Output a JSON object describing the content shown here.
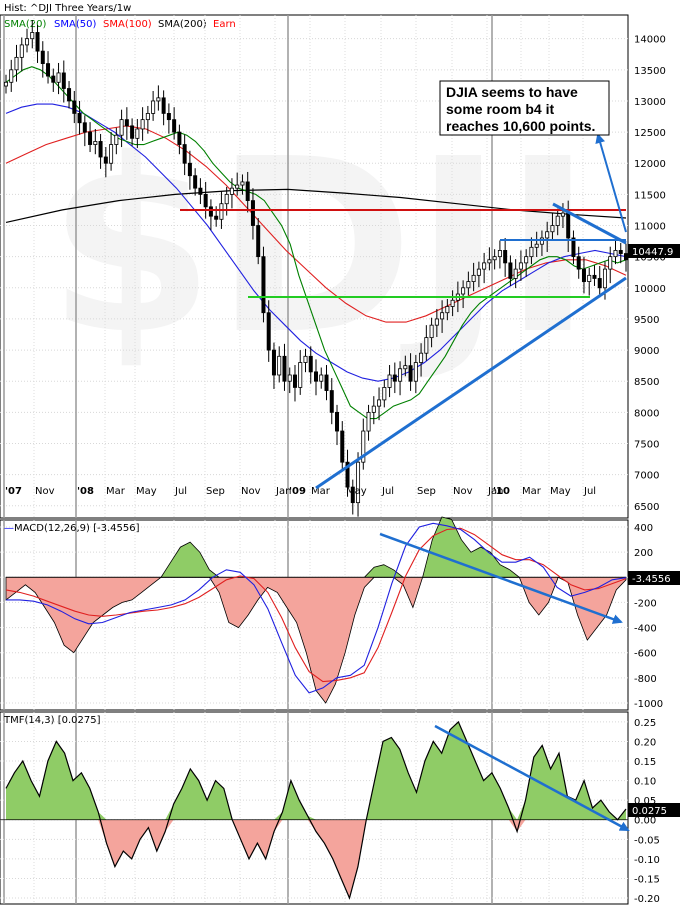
{
  "chart_data": {
    "type": "line",
    "title": "Hist: ^DJI Three Years/1w",
    "main_panel": {
      "indicators": [
        {
          "name": "SMA(20)",
          "color": "#008000"
        },
        {
          "name": "SMA(50)",
          "color": "#0000ff"
        },
        {
          "name": "SMA(100)",
          "color": "#ff0000"
        },
        {
          "name": "SMA(200)",
          "color": "#000000"
        },
        {
          "name": "Earn",
          "color": "#ff0000"
        }
      ],
      "y_ticks": [
        14000,
        13500,
        13000,
        12500,
        12000,
        11500,
        11000,
        10500,
        10000,
        9500,
        9000,
        8500,
        8000,
        7500,
        7000,
        6500
      ],
      "ylim": [
        6400,
        14300
      ],
      "x_ticks": [
        "'07",
        "Nov",
        "'08",
        "Mar",
        "May",
        "Jul",
        "Sep",
        "Nov",
        "Jan",
        "'09",
        "Mar",
        "May",
        "Jul",
        "Sep",
        "Nov",
        "Jan",
        "'10",
        "Mar",
        "May",
        "Jul"
      ],
      "last_value": "10447.9",
      "price_weekly": [
        13300,
        13500,
        13700,
        13900,
        14000,
        14100,
        13800,
        13600,
        13400,
        13300,
        13450,
        13200,
        13000,
        12800,
        12650,
        12500,
        12300,
        12350,
        12100,
        12000,
        12300,
        12450,
        12700,
        12600,
        12400,
        12550,
        12700,
        12800,
        13000,
        13050,
        12800,
        12700,
        12500,
        12300,
        12000,
        11800,
        11600,
        11500,
        11300,
        11150,
        11100,
        11350,
        11500,
        11600,
        11650,
        11700,
        11400,
        11000,
        10500,
        9600,
        9000,
        8600,
        8900,
        8500,
        8600,
        8400,
        8800,
        8900,
        8650,
        8500,
        8600,
        8350,
        8000,
        7700,
        7200,
        6800,
        6550,
        7200,
        7700,
        8000,
        8100,
        8200,
        8400,
        8600,
        8500,
        8700,
        8750,
        8500,
        8800,
        8950,
        9200,
        9400,
        9500,
        9600,
        9700,
        9800,
        9900,
        10000,
        10100,
        10200,
        10300,
        10400,
        10450,
        10500,
        10600,
        10400,
        10150,
        10300,
        10400,
        10500,
        10650,
        10700,
        10800,
        10900,
        11000,
        11150,
        11200,
        10800,
        10500,
        10300,
        10100,
        10200,
        10150,
        10000,
        10300,
        10500,
        10600,
        10550,
        10450
      ],
      "sma20": [
        13300,
        13400,
        13500,
        13550,
        13500,
        13400,
        13250,
        13100,
        12950,
        12800,
        12700,
        12600,
        12500,
        12400,
        12350,
        12300,
        12300,
        12350,
        12400,
        12450,
        12500,
        12450,
        12350,
        12200,
        12000,
        11850,
        11700,
        11600,
        11550,
        11500,
        11400,
        11200,
        11000,
        10700,
        10200,
        9800,
        9400,
        9000,
        8700,
        8400,
        8100,
        8000,
        7900,
        7900,
        8000,
        8100,
        8150,
        8200,
        8300,
        8500,
        8700,
        8900,
        9150,
        9400,
        9600,
        9750,
        9850,
        9950,
        10050,
        10150,
        10250,
        10350,
        10450,
        10500,
        10500,
        10450,
        10350,
        10300,
        10350,
        10400,
        10450,
        10400,
        10450
      ],
      "sma50": [
        12800,
        12900,
        12950,
        12950,
        12900,
        12800,
        12650,
        12500,
        12300,
        12100,
        11850,
        11600,
        11300,
        11000,
        10650,
        10300,
        9950,
        9650,
        9400,
        9150,
        8950,
        8800,
        8650,
        8550,
        8500,
        8550,
        8650,
        8800,
        9000,
        9250,
        9500,
        9750,
        9950,
        10100,
        10250,
        10400,
        10500,
        10550,
        10600,
        10550,
        10500
      ],
      "sma100": [
        12000,
        12150,
        12300,
        12400,
        12500,
        12550,
        12600,
        12550,
        12400,
        12200,
        11950,
        11650,
        11300,
        10950,
        10600,
        10300,
        10000,
        9750,
        9550,
        9450,
        9450,
        9550,
        9700,
        9850,
        10000,
        10150,
        10300,
        10400,
        10450,
        10450,
        10350,
        10200
      ],
      "sma200": [
        11050,
        11250,
        11400,
        11500,
        11560,
        11580,
        11520,
        11450,
        11350,
        11250,
        11180,
        11120
      ],
      "earnings_level": 11100
    },
    "macd_panel": {
      "label": "MACD(12,26,9) [-3.4556]",
      "y_ticks": [
        400,
        200,
        0,
        -200,
        -400,
        -600,
        -800,
        -1000
      ],
      "ylim": [
        -1040,
        440
      ],
      "last_value": "-3.4556",
      "histogram": [
        -180,
        -120,
        -60,
        -120,
        -240,
        -360,
        -540,
        -600,
        -480,
        -360,
        -300,
        -240,
        -200,
        -180,
        -120,
        -60,
        0,
        120,
        240,
        280,
        200,
        60,
        -120,
        -360,
        -400,
        -300,
        -180,
        -80,
        -120,
        -240,
        -360,
        -600,
        -900,
        -1000,
        -850,
        -600,
        -300,
        -80,
        80,
        100,
        60,
        -60,
        -240,
        0,
        300,
        480,
        460,
        300,
        200,
        240,
        200,
        100,
        60,
        0,
        -200,
        -300,
        -200,
        0,
        -40,
        -300,
        -500,
        -400,
        -300,
        -100,
        -20
      ],
      "macd": [
        -180,
        -180,
        -190,
        -220,
        -270,
        -330,
        -370,
        -360,
        -320,
        -280,
        -260,
        -240,
        -220,
        -180,
        -100,
        0,
        60,
        40,
        -60,
        -250,
        -520,
        -780,
        -920,
        -880,
        -800,
        -780,
        -700,
        -400,
        -50,
        250,
        400,
        430,
        410,
        380,
        300,
        200,
        120,
        120,
        160,
        80,
        -80,
        -150,
        -120,
        -80,
        -20,
        -3
      ],
      "signal": [
        -100,
        -120,
        -150,
        -190,
        -230,
        -270,
        -300,
        -310,
        -300,
        -285,
        -270,
        -260,
        -240,
        -210,
        -160,
        -90,
        -20,
        10,
        -10,
        -120,
        -320,
        -560,
        -750,
        -830,
        -820,
        -800,
        -760,
        -560,
        -280,
        10,
        220,
        330,
        380,
        390,
        340,
        260,
        180,
        140,
        140,
        100,
        20,
        -60,
        -100,
        -90,
        -50,
        -10
      ]
    },
    "tmf_panel": {
      "label": "TMF(14,3) [0.0275]",
      "y_ticks": [
        0.25,
        0.2,
        0.15,
        0.1,
        0.05,
        0.0,
        -0.05,
        -0.1,
        -0.15,
        -0.2
      ],
      "ylim": [
        -0.205,
        0.265
      ],
      "last_value": "0.0275",
      "series": [
        0.08,
        0.12,
        0.15,
        0.1,
        0.06,
        0.15,
        0.2,
        0.17,
        0.1,
        0.12,
        0.08,
        0.02,
        -0.06,
        -0.12,
        -0.08,
        -0.1,
        -0.05,
        -0.02,
        -0.08,
        -0.03,
        0.04,
        0.08,
        0.13,
        0.1,
        0.05,
        0.1,
        0.08,
        0.0,
        -0.05,
        -0.1,
        -0.06,
        -0.1,
        -0.03,
        0.02,
        0.1,
        0.05,
        0.01,
        -0.03,
        -0.06,
        -0.1,
        -0.15,
        -0.2,
        -0.12,
        0.0,
        0.1,
        0.2,
        0.21,
        0.18,
        0.12,
        0.07,
        0.15,
        0.2,
        0.17,
        0.23,
        0.25,
        0.2,
        0.15,
        0.1,
        0.12,
        0.08,
        0.03,
        -0.03,
        0.05,
        0.16,
        0.19,
        0.13,
        0.17,
        0.06,
        0.05,
        0.1,
        0.03,
        0.05,
        0.02,
        0.0,
        0.0275
      ]
    },
    "annotation": "DJIA seems to have some room b4 it reaches 10,600 points."
  }
}
